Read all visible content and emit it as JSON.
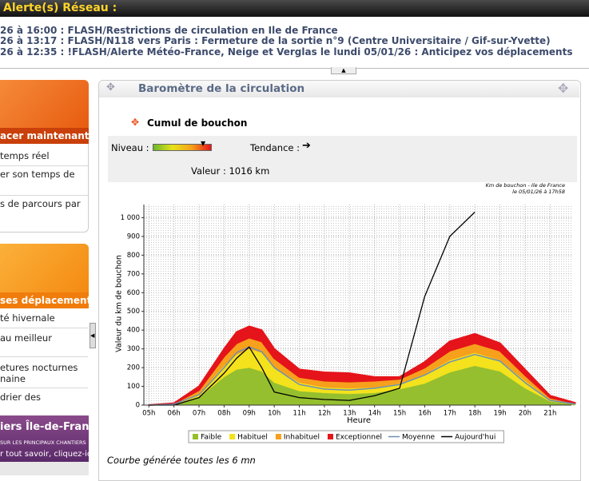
{
  "alert_bar": {
    "title": "Alerte(s) Réseau :",
    "items": [
      "26 à 16:00 :  FLASH/Restrictions de circulation en Ile de France",
      "26 à 13:17 :  FLASH/N118 vers Paris : Fermeture de la sortie n°9 (Centre Universitaire / Gif-sur-Yvette)",
      "26 à 12:35 :  !FLASH/Alerte Météo-France, Neige et Verglas le lundi 05/01/26 : Anticipez vos déplacements"
    ]
  },
  "sidebar": {
    "box1_title": "acer maintenant",
    "box1_items": [
      [
        "temps réel"
      ],
      [
        "er son temps de"
      ],
      [
        "s de parcours par"
      ]
    ],
    "box2_title": "ses déplacements",
    "box2_items": [
      [
        "té hivernale"
      ],
      [
        "au meilleur"
      ],
      [
        "etures nocturnes",
        "naine"
      ],
      [
        "drier des"
      ]
    ],
    "banner_title": "iers Île-de-France",
    "banner_sub": "SUR LES PRINCIPAUX CHANTIERS",
    "banner_link": "r tout savoir, cliquez-ici !"
  },
  "panel": {
    "title": "Baromètre de la circulation",
    "subtitle": "Cumul de bouchon",
    "level_label": "Niveau :",
    "trend_label": "Tendance :",
    "value_text": "Valeur : 1016 km",
    "footer": "Courbe générée toutes les 6 mn"
  },
  "chart_data": {
    "type": "area",
    "note": [
      "Km de bouchon - Ile de France",
      "le 05/01/26 à 17h58"
    ],
    "xlabel": "Heure",
    "ylabel": "Valeur du  km de bouchon",
    "x": [
      5,
      6,
      7,
      8,
      8.5,
      9,
      9.5,
      10,
      11,
      12,
      13,
      14,
      15,
      16,
      17,
      18,
      19,
      20,
      21,
      22
    ],
    "xlim": [
      4.8,
      21.85
    ],
    "xticks": [
      {
        "value": 5,
        "label": "05h"
      },
      {
        "value": 6,
        "label": "06h"
      },
      {
        "value": 7,
        "label": "07h"
      },
      {
        "value": 8,
        "label": "08h"
      },
      {
        "value": 9,
        "label": "09h"
      },
      {
        "value": 10,
        "label": "10h"
      },
      {
        "value": 11,
        "label": "11h"
      },
      {
        "value": 12,
        "label": "12h"
      },
      {
        "value": 13,
        "label": "13h"
      },
      {
        "value": 14,
        "label": "14h"
      },
      {
        "value": 15,
        "label": "15h"
      },
      {
        "value": 16,
        "label": "16h"
      },
      {
        "value": 17,
        "label": "17h"
      },
      {
        "value": 18,
        "label": "18h"
      },
      {
        "value": 19,
        "label": "19h"
      },
      {
        "value": 20,
        "label": "20h"
      },
      {
        "value": 21,
        "label": "21h"
      }
    ],
    "ylim": [
      0,
      1070
    ],
    "yticks": [
      0,
      100,
      200,
      300,
      400,
      500,
      600,
      700,
      800,
      900,
      {
        "value": 1000,
        "label": "1 000"
      }
    ],
    "grid": true,
    "series": [
      {
        "name": "Faible",
        "style": "area",
        "color": "#95bf2e",
        "values": [
          0,
          3,
          40,
          150,
          190,
          200,
          180,
          120,
          75,
          65,
          60,
          65,
          85,
          115,
          175,
          210,
          180,
          90,
          20,
          5
        ]
      },
      {
        "name": "Habituel",
        "style": "area",
        "color": "#f3e21c",
        "values": [
          0,
          2,
          20,
          60,
          80,
          100,
          100,
          80,
          45,
          30,
          30,
          30,
          30,
          50,
          65,
          70,
          60,
          40,
          10,
          3
        ]
      },
      {
        "name": "Inhabituel",
        "style": "area",
        "color": "#f7a01c",
        "values": [
          0,
          3,
          20,
          50,
          60,
          60,
          60,
          50,
          30,
          35,
          35,
          35,
          25,
          35,
          50,
          50,
          50,
          30,
          10,
          2
        ]
      },
      {
        "name": "Exceptionnel",
        "style": "area",
        "color": "#e5141a",
        "values": [
          0,
          2,
          20,
          40,
          60,
          60,
          60,
          50,
          40,
          45,
          45,
          20,
          10,
          30,
          50,
          50,
          40,
          30,
          10,
          2
        ]
      },
      {
        "name": "Moyenne",
        "style": "line",
        "color": "#6f8fb2",
        "values": [
          0,
          5,
          55,
          200,
          280,
          310,
          285,
          200,
          110,
          85,
          80,
          90,
          110,
          160,
          230,
          270,
          235,
          120,
          25,
          6
        ]
      },
      {
        "name": "Aujourd'hui",
        "style": "line",
        "color": "#000000",
        "values": [
          0,
          0,
          40,
          170,
          250,
          310,
          200,
          70,
          40,
          30,
          25,
          50,
          90,
          580,
          900,
          1030,
          null,
          null,
          null,
          null
        ]
      }
    ]
  }
}
